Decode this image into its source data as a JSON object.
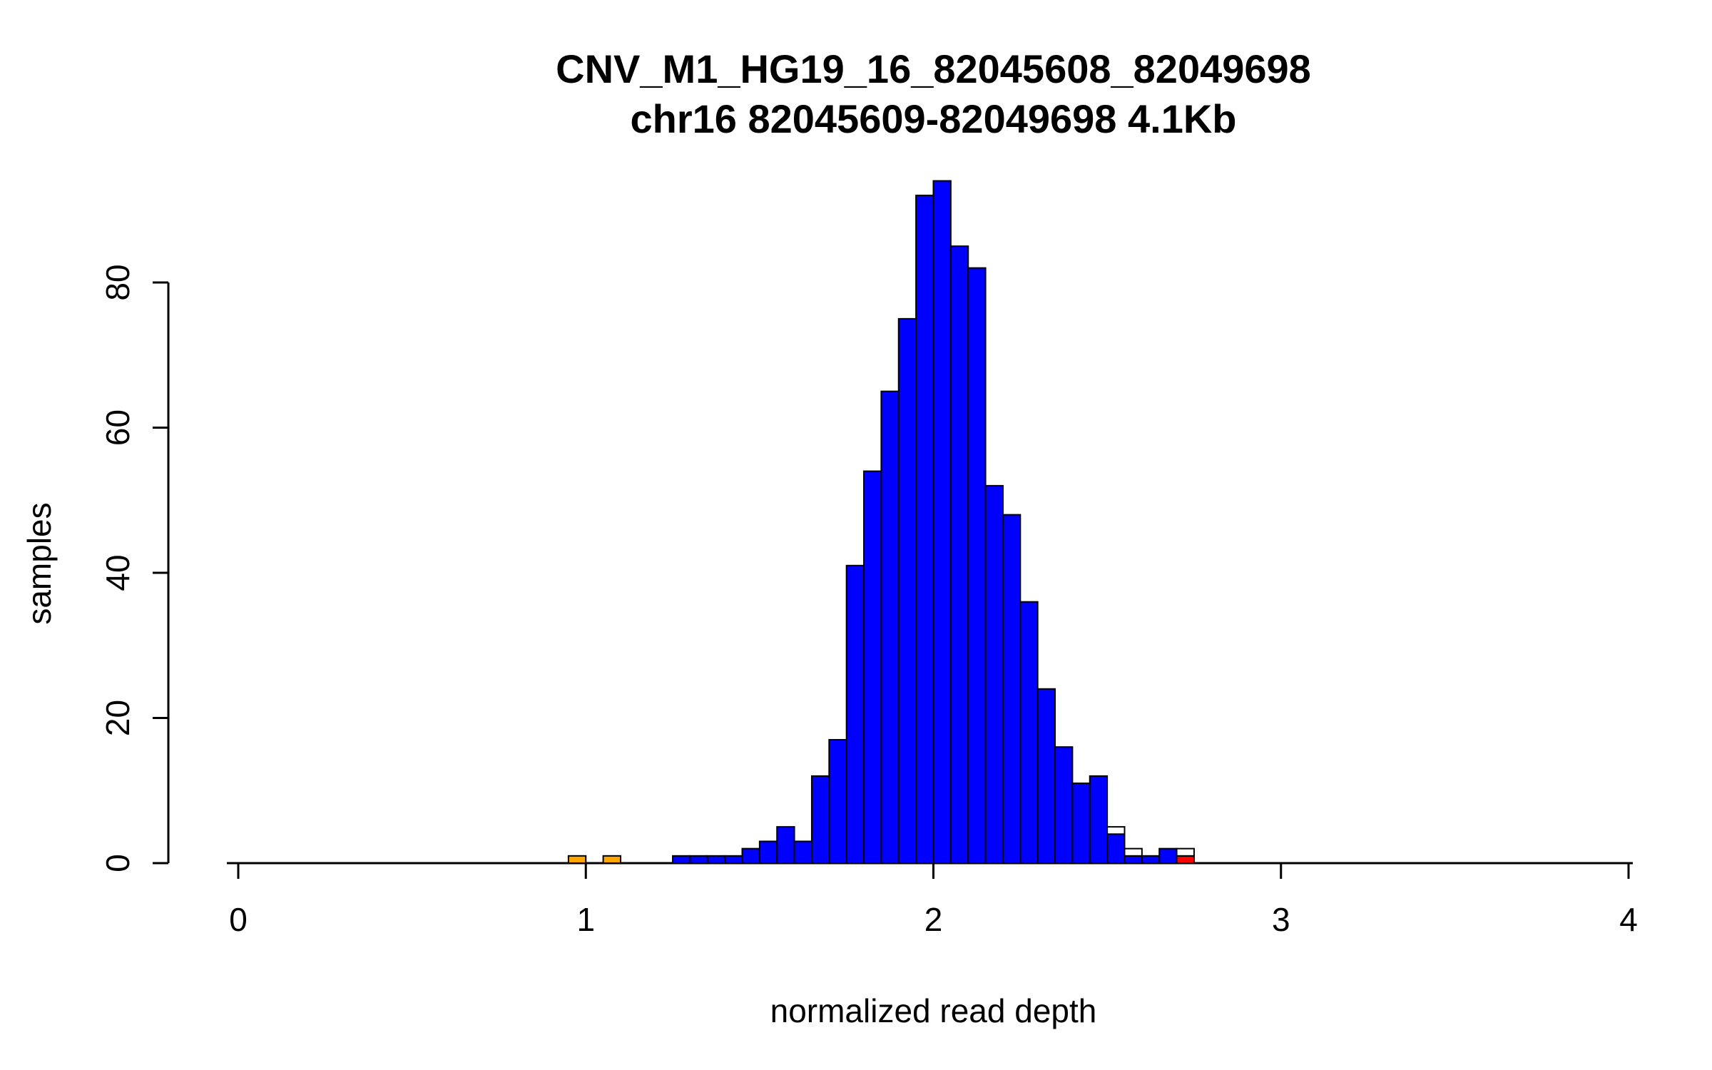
{
  "chart_data": {
    "type": "bar",
    "title": "CNV_M1_HG19_16_82045608_82049698",
    "subtitle": "chr16 82045609-82049698 4.1Kb",
    "xlabel": "normalized read depth",
    "ylabel": "samples",
    "xlim": [
      0,
      4
    ],
    "ylim": [
      0,
      95
    ],
    "x_ticks": [
      0,
      1,
      2,
      3,
      4
    ],
    "y_ticks": [
      0,
      20,
      40,
      60,
      80
    ],
    "bin_width": 0.05,
    "grid": false,
    "legend": "none",
    "colors": {
      "blue": "#0000FF",
      "orange": "#FFA500",
      "red": "#FF0000",
      "white": "#FFFFFF",
      "axis": "#000000"
    },
    "bars": [
      {
        "x": 0.95,
        "segs": [
          {
            "c": "orange",
            "v": 1
          }
        ]
      },
      {
        "x": 1.05,
        "segs": [
          {
            "c": "orange",
            "v": 1
          }
        ]
      },
      {
        "x": 1.25,
        "segs": [
          {
            "c": "blue",
            "v": 1
          }
        ]
      },
      {
        "x": 1.3,
        "segs": [
          {
            "c": "blue",
            "v": 1
          }
        ]
      },
      {
        "x": 1.35,
        "segs": [
          {
            "c": "blue",
            "v": 1
          }
        ]
      },
      {
        "x": 1.4,
        "segs": [
          {
            "c": "blue",
            "v": 1
          }
        ]
      },
      {
        "x": 1.45,
        "segs": [
          {
            "c": "blue",
            "v": 2
          }
        ]
      },
      {
        "x": 1.5,
        "segs": [
          {
            "c": "blue",
            "v": 3
          }
        ]
      },
      {
        "x": 1.55,
        "segs": [
          {
            "c": "blue",
            "v": 5
          }
        ]
      },
      {
        "x": 1.6,
        "segs": [
          {
            "c": "blue",
            "v": 3
          }
        ]
      },
      {
        "x": 1.65,
        "segs": [
          {
            "c": "blue",
            "v": 12
          }
        ]
      },
      {
        "x": 1.7,
        "segs": [
          {
            "c": "blue",
            "v": 17
          }
        ]
      },
      {
        "x": 1.75,
        "segs": [
          {
            "c": "blue",
            "v": 41
          }
        ]
      },
      {
        "x": 1.8,
        "segs": [
          {
            "c": "blue",
            "v": 54
          }
        ]
      },
      {
        "x": 1.85,
        "segs": [
          {
            "c": "blue",
            "v": 65
          }
        ]
      },
      {
        "x": 1.9,
        "segs": [
          {
            "c": "blue",
            "v": 75
          }
        ]
      },
      {
        "x": 1.95,
        "segs": [
          {
            "c": "blue",
            "v": 92
          }
        ]
      },
      {
        "x": 2.0,
        "segs": [
          {
            "c": "blue",
            "v": 94
          }
        ]
      },
      {
        "x": 2.05,
        "segs": [
          {
            "c": "blue",
            "v": 85
          }
        ]
      },
      {
        "x": 2.1,
        "segs": [
          {
            "c": "blue",
            "v": 82
          }
        ]
      },
      {
        "x": 2.15,
        "segs": [
          {
            "c": "blue",
            "v": 52
          }
        ]
      },
      {
        "x": 2.2,
        "segs": [
          {
            "c": "blue",
            "v": 48
          }
        ]
      },
      {
        "x": 2.25,
        "segs": [
          {
            "c": "blue",
            "v": 36
          }
        ]
      },
      {
        "x": 2.3,
        "segs": [
          {
            "c": "blue",
            "v": 24
          }
        ]
      },
      {
        "x": 2.35,
        "segs": [
          {
            "c": "blue",
            "v": 16
          }
        ]
      },
      {
        "x": 2.4,
        "segs": [
          {
            "c": "blue",
            "v": 11
          }
        ]
      },
      {
        "x": 2.45,
        "segs": [
          {
            "c": "blue",
            "v": 12
          }
        ]
      },
      {
        "x": 2.5,
        "segs": [
          {
            "c": "blue",
            "v": 4
          },
          {
            "c": "white",
            "v": 1
          }
        ]
      },
      {
        "x": 2.55,
        "segs": [
          {
            "c": "blue",
            "v": 1
          },
          {
            "c": "white",
            "v": 1
          }
        ]
      },
      {
        "x": 2.6,
        "segs": [
          {
            "c": "blue",
            "v": 1
          }
        ]
      },
      {
        "x": 2.65,
        "segs": [
          {
            "c": "blue",
            "v": 2
          }
        ]
      },
      {
        "x": 2.7,
        "segs": [
          {
            "c": "red",
            "v": 1
          },
          {
            "c": "white",
            "v": 1
          }
        ]
      }
    ]
  }
}
